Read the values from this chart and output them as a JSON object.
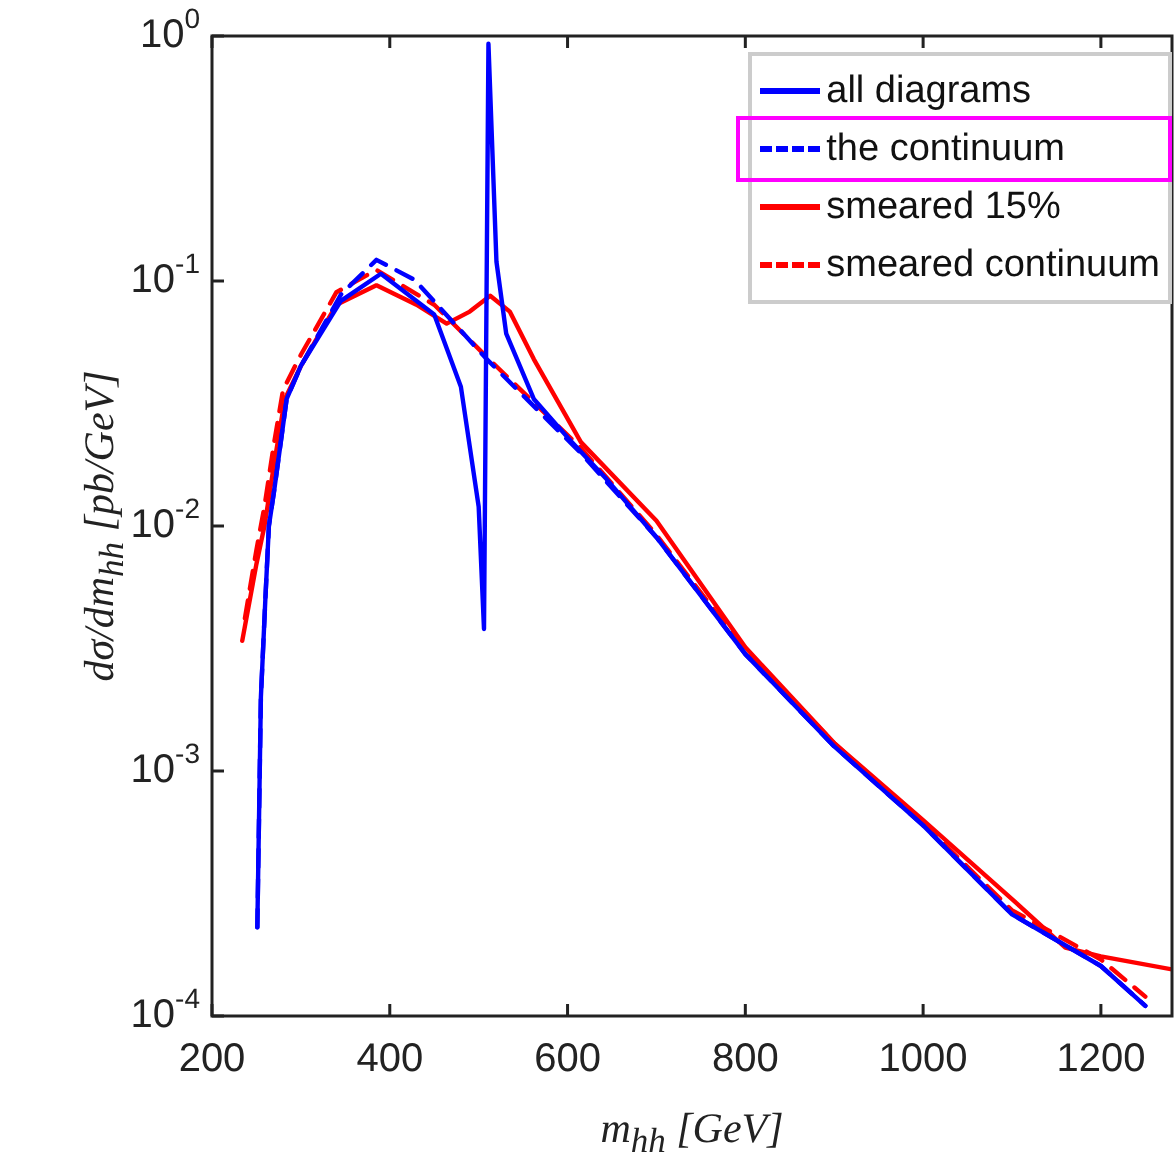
{
  "chart_data": {
    "type": "line",
    "xlabel": "m$_{hh}$ [GeV]",
    "ylabel": "dσ/dm$_{hh}$ [pb/GeV]",
    "log": "y",
    "xlim": [
      200,
      1280
    ],
    "xticks": [
      200,
      400,
      600,
      800,
      1000,
      1200
    ],
    "ylim": [
      0.0001,
      1
    ],
    "yticks": [
      {
        "value": 0.0001,
        "label": "10$^{-4}$"
      },
      {
        "value": 0.001,
        "label": "10$^{-3}$"
      },
      {
        "value": 0.01,
        "label": "10$^{-2}$"
      },
      {
        "value": 0.1,
        "label": "10$^{-1}$"
      },
      {
        "value": 1,
        "label": "10$^{0}$"
      }
    ],
    "grid": false,
    "legend": "top right",
    "marker": "none",
    "series": [
      {
        "name": "all diagrams",
        "color": "#0000ff",
        "line_style": "solid",
        "x": [
          251,
          255,
          260,
          264,
          270,
          284,
          300,
          345,
          390,
          450,
          480,
          500,
          506,
          511,
          520,
          531,
          562,
          600,
          644,
          700,
          800,
          900,
          1000,
          1100,
          1200,
          1250
        ],
        "values": [
          0.00023,
          0.002,
          0.005,
          0.01,
          0.014,
          0.033,
          0.045,
          0.083,
          0.107,
          0.073,
          0.037,
          0.012,
          0.0038,
          0.93,
          0.12,
          0.061,
          0.033,
          0.023,
          0.0155,
          0.009,
          0.003,
          0.00126,
          0.0006,
          0.00026,
          0.00016,
          0.00011
        ]
      },
      {
        "name": "the continuum",
        "color": "#0000ff",
        "line_style": "dashed",
        "x": [
          251,
          255,
          260,
          264,
          270,
          284,
          300,
          345,
          385,
          428,
          509,
          614,
          700,
          800,
          900,
          1000,
          1100,
          1200,
          1250
        ],
        "values": [
          0.00023,
          0.002,
          0.005,
          0.01,
          0.014,
          0.033,
          0.045,
          0.088,
          0.122,
          0.101,
          0.048,
          0.02,
          0.009,
          0.003,
          0.00126,
          0.0006,
          0.00026,
          0.00016,
          0.00011
        ]
      },
      {
        "name": "smeared 15%",
        "color": "#ff0000",
        "line_style": "solid",
        "x": [
          234,
          250,
          259,
          270,
          282,
          300,
          340,
          385,
          430,
          464,
          490,
          513,
          535,
          562,
          615,
          700,
          800,
          900,
          1000,
          1100,
          1160,
          1200,
          1280
        ],
        "values": [
          0.0034,
          0.007,
          0.01,
          0.018,
          0.033,
          0.045,
          0.08,
          0.096,
          0.08,
          0.067,
          0.075,
          0.087,
          0.075,
          0.048,
          0.022,
          0.0105,
          0.0032,
          0.0013,
          0.00063,
          0.0003,
          0.00019,
          0.000175,
          0.000155
        ]
      },
      {
        "name": "smeared continuum",
        "color": "#ff0000",
        "line_style": "dashed",
        "x": [
          237,
          250,
          259,
          270,
          280,
          300,
          340,
          385,
          450,
          509,
          614,
          700,
          800,
          900,
          1000,
          1100,
          1200,
          1250
        ],
        "values": [
          0.0042,
          0.008,
          0.012,
          0.022,
          0.036,
          0.05,
          0.09,
          0.111,
          0.08,
          0.049,
          0.021,
          0.0092,
          0.0031,
          0.0013,
          0.00061,
          0.00027,
          0.00017,
          0.00012
        ]
      }
    ]
  }
}
